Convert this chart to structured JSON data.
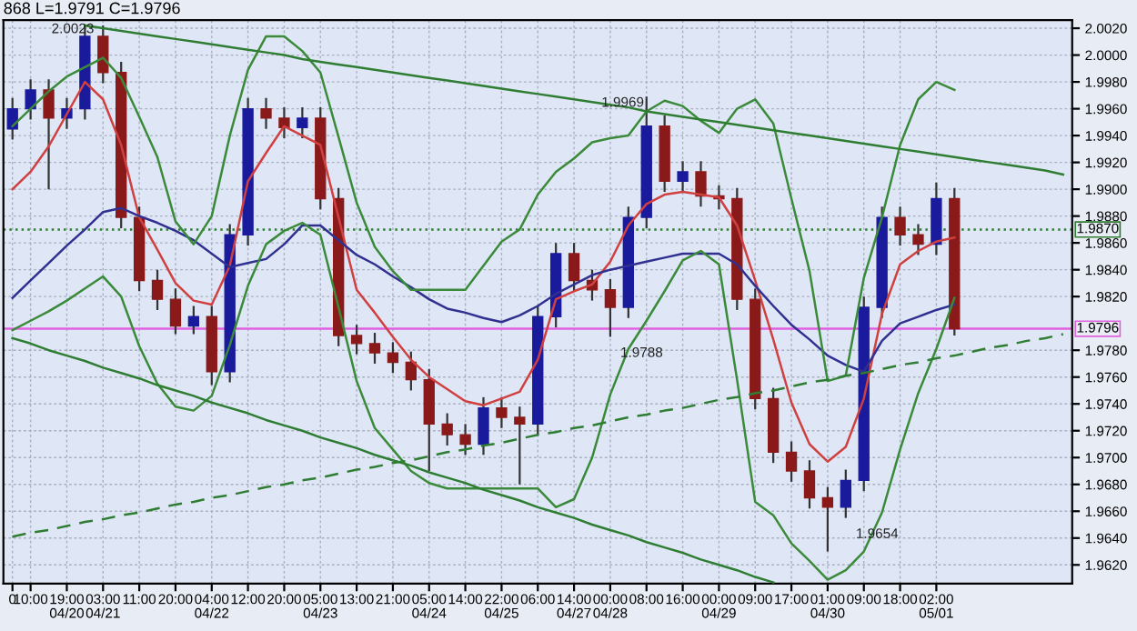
{
  "chart_data": {
    "type": "candlestick",
    "title": "868 L=1.9791 C=1.9796",
    "categories": [
      "0",
      "10:00",
      null,
      "19:00\n04/20",
      null,
      "03:00\n04/21",
      null,
      "11:00",
      null,
      "20:00",
      null,
      "04:00\n04/22",
      null,
      "12:00",
      null,
      "20:00",
      null,
      "05:00\n04/23",
      null,
      "13:00",
      null,
      "21:00",
      null,
      "05:00\n04/24",
      null,
      "14:00",
      null,
      "22:00\n04/25",
      null,
      "06:00",
      null,
      "14:00\n04/27",
      null,
      "00:00\n04/28",
      null,
      "08:00",
      null,
      "16:00",
      null,
      "00:00\n04/29",
      null,
      "09:00",
      null,
      "17:00",
      null,
      "01:00\n04/30",
      null,
      "09:00",
      null,
      "18:00",
      null,
      "02:00\n05/01",
      null,
      null,
      null,
      null,
      null,
      null,
      null
    ],
    "ohlc": [
      [
        1.9945,
        1.9968,
        1.9937,
        1.996
      ],
      [
        1.996,
        1.9982,
        1.9952,
        1.9974
      ],
      [
        1.9974,
        1.9982,
        1.99,
        1.9953
      ],
      [
        1.9953,
        1.9968,
        1.9945,
        1.996
      ],
      [
        1.996,
        2.0023,
        1.9952,
        2.0014
      ],
      [
        2.0014,
        2.0022,
        1.9979,
        1.9987
      ],
      [
        1.9987,
        1.9995,
        1.9871,
        1.9879
      ],
      [
        1.9879,
        1.9887,
        1.9824,
        1.9832
      ],
      [
        1.9832,
        1.984,
        1.981,
        1.9818
      ],
      [
        1.9818,
        1.9826,
        1.9792,
        1.9798
      ],
      [
        1.9798,
        1.9813,
        1.9792,
        1.9805
      ],
      [
        1.9805,
        1.9813,
        1.9754,
        1.9764
      ],
      [
        1.9764,
        1.9874,
        1.9756,
        1.9866
      ],
      [
        1.9866,
        1.9968,
        1.9858,
        1.996
      ],
      [
        1.996,
        1.9968,
        1.9945,
        1.9953
      ],
      [
        1.9953,
        1.9961,
        1.9938,
        1.9946
      ],
      [
        1.9946,
        1.9961,
        1.9938,
        1.9953
      ],
      [
        1.9953,
        1.9961,
        1.9885,
        1.9893
      ],
      [
        1.9893,
        1.9901,
        1.9783,
        1.9791
      ],
      [
        1.9791,
        1.9799,
        1.9777,
        1.9785
      ],
      [
        1.9785,
        1.9793,
        1.977,
        1.9778
      ],
      [
        1.9778,
        1.9786,
        1.9763,
        1.9771
      ],
      [
        1.9771,
        1.9779,
        1.975,
        1.9758
      ],
      [
        1.9758,
        1.9766,
        1.969,
        1.9725
      ],
      [
        1.9725,
        1.9733,
        1.9709,
        1.9717
      ],
      [
        1.9717,
        1.9725,
        1.9702,
        1.971
      ],
      [
        1.971,
        1.9745,
        1.9702,
        1.9737
      ],
      [
        1.9737,
        1.9745,
        1.9722,
        1.973
      ],
      [
        1.973,
        1.9738,
        1.968,
        1.9725
      ],
      [
        1.9725,
        1.9813,
        1.9717,
        1.9805
      ],
      [
        1.9805,
        1.986,
        1.9797,
        1.9852
      ],
      [
        1.9852,
        1.986,
        1.9824,
        1.9832
      ],
      [
        1.9832,
        1.984,
        1.9817,
        1.9825
      ],
      [
        1.9825,
        1.9833,
        1.979,
        1.9812
      ],
      [
        1.9812,
        1.9887,
        1.9804,
        1.9879
      ],
      [
        1.9879,
        1.9969,
        1.9871,
        1.9947
      ],
      [
        1.9947,
        1.9955,
        1.9898,
        1.9906
      ],
      [
        1.9906,
        1.9921,
        1.9898,
        1.9913
      ],
      [
        1.9913,
        1.9921,
        1.9887,
        1.9895
      ],
      [
        1.9895,
        1.9903,
        1.9885,
        1.9893
      ],
      [
        1.9893,
        1.9901,
        1.981,
        1.9818
      ],
      [
        1.9818,
        1.9826,
        1.9736,
        1.9744
      ],
      [
        1.9744,
        1.9752,
        1.9696,
        1.9704
      ],
      [
        1.9704,
        1.9712,
        1.9682,
        1.969
      ],
      [
        1.969,
        1.9698,
        1.9662,
        1.967
      ],
      [
        1.967,
        1.9678,
        1.963,
        1.9663
      ],
      [
        1.9663,
        1.9691,
        1.9655,
        1.9683
      ],
      [
        1.9683,
        1.982,
        1.9675,
        1.9812
      ],
      [
        1.9812,
        1.9887,
        1.9804,
        1.9879
      ],
      [
        1.9879,
        1.9887,
        1.9858,
        1.9866
      ],
      [
        1.9866,
        1.9874,
        1.9851,
        1.9859
      ],
      [
        1.9859,
        1.9905,
        1.9851,
        1.9893
      ],
      [
        1.9893,
        1.9901,
        1.9791,
        1.9796
      ],
      null,
      null,
      null,
      null,
      null,
      null
    ],
    "series": [
      {
        "type": "line",
        "color": "#d04040",
        "values": [
          1.99,
          1.9913,
          1.9932,
          1.9956,
          1.998,
          1.9967,
          1.9933,
          1.9879,
          1.9855,
          1.983,
          1.9817,
          1.9814,
          1.9843,
          1.9906,
          1.9927,
          1.9947,
          1.994,
          1.9933,
          1.9879,
          1.9825,
          1.9808,
          1.979,
          1.9773,
          1.976,
          1.9751,
          1.9742,
          1.9739,
          1.9744,
          1.9749,
          1.9773,
          1.9818,
          1.9824,
          1.9829,
          1.9846,
          1.9873,
          1.9889,
          1.9896,
          1.9898,
          1.9896,
          1.9894,
          1.9873,
          1.9832,
          1.9788,
          1.9741,
          1.971,
          1.9697,
          1.9708,
          1.9744,
          1.9807,
          1.9844,
          1.9854,
          1.9861,
          1.9864,
          null,
          null,
          null,
          null,
          null,
          null
        ]
      },
      {
        "type": "line",
        "color": "#303090",
        "values": [
          1.9819,
          1.9832,
          1.9845,
          1.9858,
          1.987,
          1.9883,
          1.9886,
          1.988,
          1.9875,
          1.9869,
          1.9862,
          1.9852,
          1.9842,
          1.9845,
          1.9848,
          1.9859,
          1.9873,
          1.9873,
          1.9862,
          1.9851,
          1.9844,
          1.9835,
          1.9827,
          1.9818,
          1.9811,
          1.9808,
          1.9804,
          1.9801,
          1.9806,
          1.9813,
          1.9822,
          1.9829,
          1.9836,
          1.984,
          1.9843,
          1.9846,
          1.9849,
          1.9852,
          1.9852,
          1.9852,
          1.9844,
          1.9828,
          1.9813,
          1.9799,
          1.9788,
          1.9776,
          1.9769,
          1.9764,
          1.9787,
          1.98,
          1.9805,
          1.981,
          1.9814,
          null,
          null,
          null,
          null,
          null,
          null
        ]
      },
      {
        "type": "line",
        "color": "#3a8a3a",
        "values": [
          1.9947,
          1.996,
          1.9973,
          1.9984,
          1.9991,
          1.9998,
          1.9983,
          1.9954,
          1.9924,
          1.9876,
          1.9859,
          1.988,
          1.994,
          1.9989,
          2.0014,
          2.0014,
          2.0003,
          1.9987,
          1.9939,
          1.989,
          1.9857,
          1.9839,
          1.9825,
          1.9825,
          1.9825,
          1.9825,
          1.9843,
          1.9861,
          1.987,
          1.9896,
          1.9913,
          1.9923,
          1.9935,
          1.9938,
          1.994,
          1.9958,
          1.9966,
          1.9962,
          1.9951,
          1.9942,
          1.996,
          1.9967,
          1.9949,
          1.9893,
          1.9839,
          1.9757,
          1.9761,
          1.9834,
          1.9879,
          1.9933,
          1.9967,
          1.998,
          1.9974,
          null,
          null,
          null,
          null,
          null,
          null
        ]
      },
      {
        "type": "line",
        "color": "#3a8a3a",
        "values": [
          1.9795,
          1.9802,
          1.9809,
          1.9817,
          1.9826,
          1.9835,
          1.982,
          1.9783,
          1.9755,
          1.9738,
          1.9735,
          1.9746,
          1.9784,
          1.9828,
          1.9859,
          1.9869,
          1.9875,
          1.9866,
          1.9812,
          1.9757,
          1.9722,
          1.9706,
          1.969,
          1.9681,
          1.9677,
          1.9677,
          1.9677,
          1.9677,
          1.9677,
          1.9677,
          1.9663,
          1.9669,
          1.97,
          1.9747,
          1.9781,
          1.9802,
          1.9824,
          1.9847,
          1.9854,
          1.9844,
          1.9758,
          1.9667,
          1.9657,
          1.9636,
          1.9623,
          1.9609,
          1.9616,
          1.963,
          1.9659,
          1.9706,
          1.9748,
          1.9781,
          1.9819,
          null,
          null,
          null,
          null,
          null,
          null
        ]
      },
      {
        "type": "line",
        "color": "#2e7d32",
        "values": [
          null,
          null,
          null,
          null,
          2.0022,
          2.002,
          2.0018,
          2.0016,
          2.0014,
          2.0012,
          2.001,
          2.0008,
          2.0006,
          2.0004,
          2.0002,
          2.0,
          1.9997,
          1.9995,
          1.9993,
          1.9991,
          1.9989,
          1.9987,
          1.9985,
          1.9983,
          1.9981,
          1.9979,
          1.9977,
          1.9975,
          1.9973,
          1.9971,
          1.9969,
          1.9967,
          1.9965,
          1.9963,
          1.9961,
          1.9958,
          1.9956,
          1.9954,
          1.9952,
          1.995,
          1.9948,
          1.9946,
          1.9944,
          1.9942,
          1.994,
          1.9938,
          1.9936,
          1.9934,
          1.9932,
          1.993,
          1.9928,
          1.9926,
          1.9924,
          1.9922,
          1.992,
          1.9918,
          1.9916,
          1.9914,
          1.9911
        ]
      },
      {
        "type": "line",
        "color": "#2e7d32",
        "values": [
          1.9789,
          1.9785,
          1.978,
          1.9776,
          1.9772,
          1.9767,
          1.9763,
          1.9759,
          1.9754,
          1.975,
          1.9746,
          1.9741,
          1.9737,
          1.9733,
          1.9728,
          1.9724,
          1.972,
          1.9715,
          1.9711,
          1.9707,
          1.9702,
          1.9698,
          1.9694,
          1.9689,
          1.9685,
          1.9681,
          1.9676,
          1.9672,
          1.9668,
          1.9663,
          1.9659,
          1.9655,
          1.965,
          1.9646,
          1.9642,
          1.9637,
          1.9633,
          1.9629,
          1.9624,
          1.962,
          1.9616,
          1.9611,
          1.9607,
          null,
          null,
          null,
          null,
          null,
          null,
          null,
          null,
          null,
          null,
          null,
          null,
          null,
          null,
          null,
          null
        ]
      },
      {
        "type": "line",
        "color": "#2e7d32",
        "line_style": "dashed",
        "values": [
          1.9641,
          1.9644,
          1.9646,
          1.9649,
          1.9652,
          1.9654,
          1.9657,
          1.9659,
          1.9662,
          1.9665,
          1.9667,
          1.967,
          1.9672,
          1.9675,
          1.9678,
          1.968,
          1.9683,
          1.9685,
          1.9688,
          1.9691,
          1.9693,
          1.9696,
          1.9698,
          1.9701,
          1.9704,
          1.9706,
          1.9709,
          1.9711,
          1.9714,
          1.9717,
          1.9719,
          1.9722,
          1.9724,
          1.9727,
          1.973,
          1.9732,
          1.9735,
          1.9737,
          1.974,
          1.9743,
          1.9745,
          1.9748,
          1.975,
          1.9753,
          1.9756,
          1.9758,
          1.9761,
          1.9763,
          1.9766,
          1.9769,
          1.9771,
          1.9774,
          1.9776,
          1.9779,
          1.9782,
          1.9784,
          1.9787,
          1.9789,
          1.9792
        ]
      }
    ],
    "ref_lines": [
      {
        "axis": "y",
        "value": 1.987,
        "label": "1.9870",
        "color": "#2e7d32",
        "line_style": "dotted"
      },
      {
        "axis": "y",
        "value": 1.9796,
        "label": "1.9796",
        "color": "#e060e0",
        "line_style": "solid"
      }
    ],
    "annotations": [
      "2.0023",
      {
        "text": "1.9969",
        "y": 1.9969
      },
      {
        "text": "1.9788",
        "y": 1.979
      },
      {
        "text": "1.9654",
        "y": 1.9655
      }
    ],
    "ylim": [
      1.9606,
      2.0026
    ],
    "yticks": [
      {
        "value": 1.962,
        "label": "1.9620"
      },
      {
        "value": 1.964,
        "label": "1.9640"
      },
      {
        "value": 1.966,
        "label": "1.9660"
      },
      {
        "value": 1.968,
        "label": "1.9680"
      },
      {
        "value": 1.97,
        "label": "1.9700"
      },
      {
        "value": 1.972,
        "label": "1.9720"
      },
      {
        "value": 1.974,
        "label": "1.9740"
      },
      {
        "value": 1.976,
        "label": "1.9760"
      },
      {
        "value": 1.978,
        "label": "1.9780"
      },
      {
        "value": 1.982,
        "label": "1.9820"
      },
      {
        "value": 1.984,
        "label": "1.9840"
      },
      {
        "value": 1.986,
        "label": "1.9860"
      },
      {
        "value": 1.988,
        "label": "1.9880"
      },
      {
        "value": 1.99,
        "label": "1.9900"
      },
      {
        "value": 1.992,
        "label": "1.9920"
      },
      {
        "value": 1.994,
        "label": "1.9940"
      },
      {
        "value": 1.996,
        "label": "1.9960"
      },
      {
        "value": 1.998,
        "label": "1.9980"
      },
      {
        "value": 2.0,
        "label": "2.0000"
      },
      {
        "value": 2.002,
        "label": "2.0020"
      }
    ],
    "grid": true
  }
}
